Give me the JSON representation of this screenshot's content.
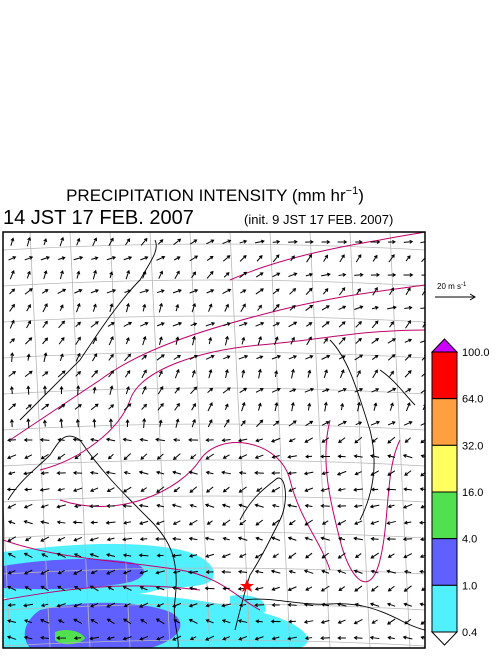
{
  "header": {
    "title": "PRECIPITATION INTENSITY (mm hr",
    "title_exponent": "−1",
    "title_close": ")",
    "valid_time": "14 JST 17 FEB. 2007",
    "init_time": "(init. 9 JST 17 FEB. 2007)"
  },
  "reference_vector": {
    "label": "20 m s",
    "exponent": "-1"
  },
  "colorbar": {
    "labels": [
      "100.0",
      "64.0",
      "32.0",
      "16.0",
      "4.0",
      "1.0",
      "0.4"
    ],
    "colors": [
      "#cc00ff",
      "#ff0000",
      "#ffa040",
      "#ffff60",
      "#50e050",
      "#6060ff",
      "#50f0ff",
      "#ffffff"
    ]
  }
}
